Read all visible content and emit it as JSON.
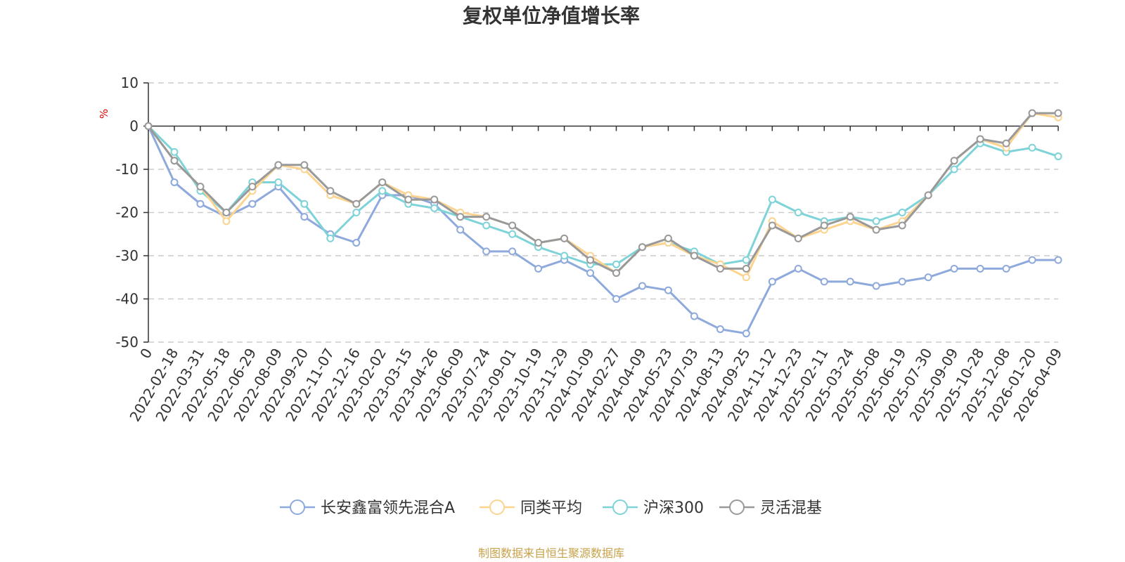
{
  "chart_data": {
    "type": "line",
    "title": "复权单位净值增长率",
    "ylabel": "%",
    "ylim": [
      -50,
      10
    ],
    "yticks": [
      10,
      0,
      -10,
      -20,
      -30,
      -40,
      -50
    ],
    "grid": true,
    "legend_position": "bottom",
    "source": "制图数据来自恒生聚源数据库",
    "categories": [
      "0",
      "2022-02-18",
      "2022-03-31",
      "2022-05-18",
      "2022-06-29",
      "2022-08-09",
      "2022-09-20",
      "2022-11-07",
      "2022-12-16",
      "2023-02-02",
      "2023-03-15",
      "2023-04-26",
      "2023-06-09",
      "2023-07-24",
      "2023-09-01",
      "2023-10-19",
      "2023-11-29",
      "2024-01-09",
      "2024-02-27",
      "2024-04-09",
      "2024-05-23",
      "2024-07-03",
      "2024-08-13",
      "2024-09-25",
      "2024-11-12",
      "2024-12-23",
      "2025-02-11",
      "2025-03-24",
      "2025-05-08",
      "2025-06-19",
      "2025-07-30",
      "2025-09-09",
      "2025-10-28",
      "2025-12-08",
      "2026-01-20",
      "2026-04-09"
    ],
    "series": [
      {
        "name": "长安鑫富领先混合A",
        "color": "#8ea9db",
        "values": [
          0,
          -13,
          -18,
          -21,
          -18,
          -14,
          -21,
          -25,
          -27,
          -16,
          -16,
          -18,
          -24,
          -29,
          -29,
          -33,
          -31,
          -34,
          -40,
          -37,
          -38,
          -44,
          -47,
          -48,
          -36,
          -33,
          -36,
          -36,
          -37,
          -36,
          -35,
          -33,
          -33,
          -33,
          -31,
          -31
        ]
      },
      {
        "name": "同类平均",
        "color": "#fcd48f",
        "values": [
          0,
          -8,
          -14,
          -22,
          -15,
          -9,
          -10,
          -16,
          -18,
          -13,
          -16,
          -17,
          -20,
          -21,
          -23,
          -27,
          -26,
          -30,
          -34,
          -28,
          -27,
          -30,
          -32,
          -35,
          -22,
          -26,
          -24,
          -22,
          -24,
          -22,
          -16,
          -8,
          -3,
          -5,
          3,
          2
        ]
      },
      {
        "name": "沪深300",
        "color": "#7ed3d8",
        "values": [
          0,
          -6,
          -15,
          -20,
          -13,
          -13,
          -18,
          -26,
          -20,
          -15,
          -18,
          -19,
          -21,
          -23,
          -25,
          -28,
          -30,
          -32,
          -32,
          -28,
          -27,
          -29,
          -32,
          -31,
          -17,
          -20,
          -22,
          -21,
          -22,
          -20,
          -16,
          -10,
          -4,
          -6,
          -5,
          -7
        ]
      },
      {
        "name": "灵活混基",
        "color": "#999999",
        "values": [
          0,
          -8,
          -14,
          -20,
          -14,
          -9,
          -9,
          -15,
          -18,
          -13,
          -17,
          -17,
          -21,
          -21,
          -23,
          -27,
          -26,
          -31,
          -34,
          -28,
          -26,
          -30,
          -33,
          -33,
          -23,
          -26,
          -23,
          -21,
          -24,
          -23,
          -16,
          -8,
          -3,
          -4,
          3,
          3
        ]
      }
    ]
  }
}
